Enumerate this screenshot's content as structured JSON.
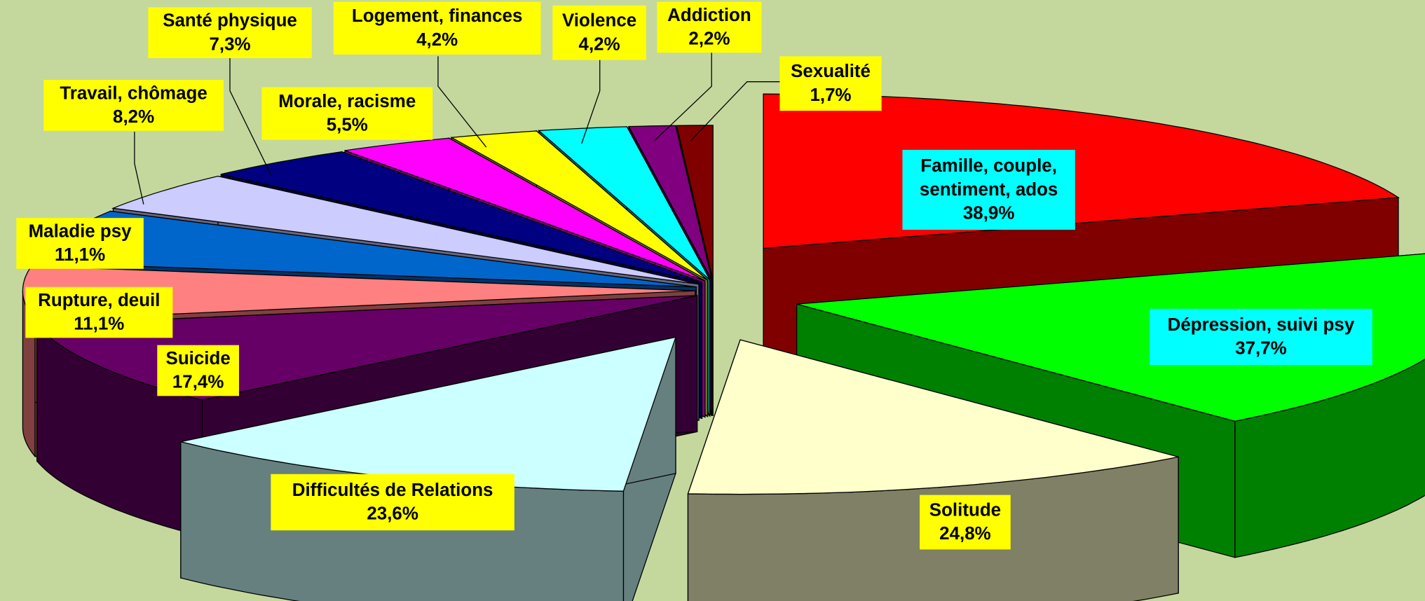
{
  "chart_data": {
    "type": "pie3d",
    "categories": [
      "Famille, couple, sentiment, ados",
      "Dépression, suivi psy",
      "Solitude",
      "Difficultés de Relations",
      "Suicide",
      "Rupture, deuil",
      "Maladie psy",
      "Travail, chômage",
      "Santé physique",
      "Morale, racisme",
      "Logement, finances",
      "Violence",
      "Addiction",
      "Sexualité"
    ],
    "values": [
      38.9,
      37.7,
      24.8,
      23.6,
      17.4,
      11.1,
      11.1,
      8.2,
      7.3,
      5.5,
      4.2,
      4.2,
      2.2,
      1.7
    ],
    "value_labels": [
      "38,9%",
      "37,7%",
      "24,8%",
      "23,6%",
      "17,4%",
      "11,1%",
      "11,1%",
      "8,2%",
      "7,3%",
      "5,5%",
      "4,2%",
      "4,2%",
      "2,2%",
      "1,7%"
    ],
    "colors": [
      "#ff0000",
      "#00ff00",
      "#ffffcc",
      "#ccffff",
      "#660066",
      "#ff8080",
      "#0066cc",
      "#ccccff",
      "#000080",
      "#ff00ff",
      "#ffff00",
      "#00ffff",
      "#800080",
      "#800000"
    ]
  }
}
